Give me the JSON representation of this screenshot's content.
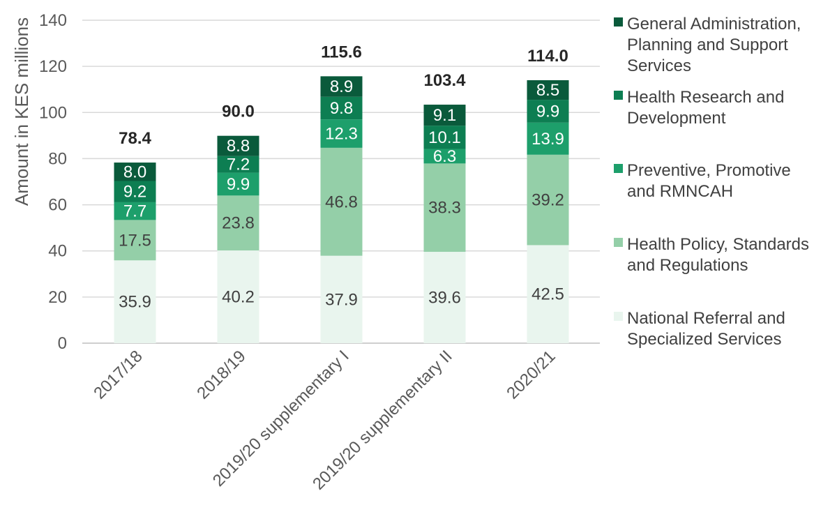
{
  "chart_data": {
    "type": "bar",
    "stacked": true,
    "categories": [
      "2017/18",
      "2018/19",
      "2019/20 supplementary I",
      "2019/20 supplementary II",
      "2020/21"
    ],
    "series": [
      {
        "name": "National Referral and Specialized Services",
        "color": "#e9f5ee",
        "label_color": "#404040",
        "values": [
          35.9,
          40.2,
          37.9,
          39.6,
          42.5
        ]
      },
      {
        "name": "Health Policy, Standards and Regulations",
        "color": "#94cfa8",
        "label_color": "#404040",
        "values": [
          17.5,
          23.8,
          46.8,
          38.3,
          39.2
        ]
      },
      {
        "name": "Preventive, Promotive and RMNCAH",
        "color": "#1d9f6b",
        "label_color": "#ffffff",
        "values": [
          7.7,
          9.9,
          12.3,
          6.3,
          13.9
        ]
      },
      {
        "name": "Health Research and Development",
        "color": "#0d7e52",
        "label_color": "#ffffff",
        "values": [
          9.2,
          7.2,
          9.8,
          10.1,
          9.9
        ]
      },
      {
        "name": "General Administration, Planning and Support Services",
        "color": "#0a5a3b",
        "label_color": "#ffffff",
        "values": [
          8.0,
          8.8,
          8.9,
          9.1,
          8.5
        ]
      }
    ],
    "totals": [
      "78.4",
      "90.0",
      "115.6",
      "103.4",
      "114.0"
    ],
    "ylabel": "Amount in KES millions",
    "xlabel": "",
    "ylim": [
      0,
      140
    ],
    "yticks": [
      0,
      20,
      40,
      60,
      80,
      100,
      120,
      140
    ],
    "grid": true,
    "legend_position": "right",
    "legend_lines": [
      [
        "General Administration,",
        "Planning and Support",
        " Services"
      ],
      [
        "Health Research and",
        "Development"
      ],
      [
        "Preventive, Promotive",
        "and RMNCAH"
      ],
      [
        "Health Policy, Standards",
        "and Regulations"
      ],
      [
        "National Referral and",
        "Specialized Services"
      ]
    ]
  }
}
